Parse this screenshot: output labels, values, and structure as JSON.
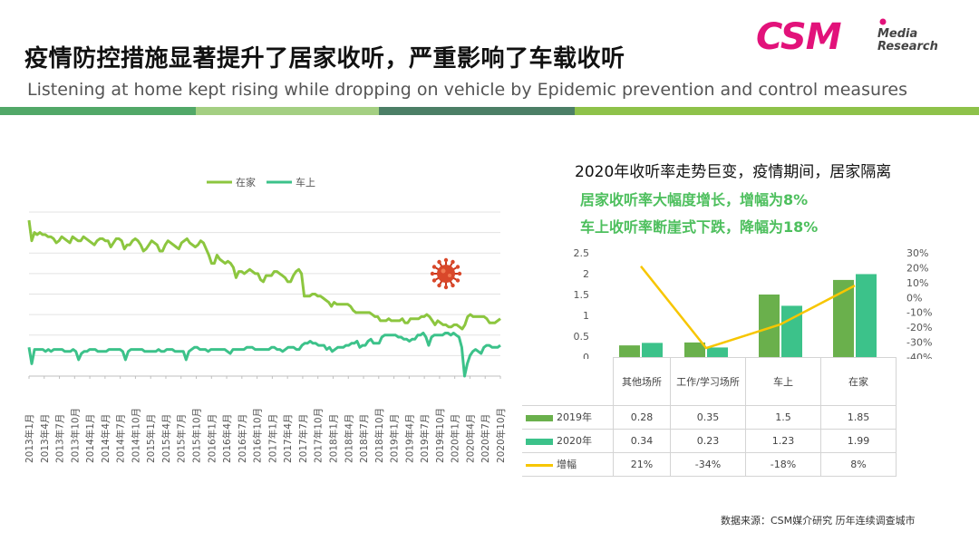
{
  "title": "疫情防控措施显著提升了居家收听，严重影响了车载收听",
  "subtitle": "Listening at home kept rising while dropping on vehicle by Epidemic prevention and control measures",
  "logo": {
    "main": "CSM",
    "line1": "Media",
    "line2": "Research"
  },
  "colors": {
    "home": "#8cc63f",
    "car": "#3cc28a",
    "bar2019": "#6ab04c",
    "bar2020": "#3cc28a",
    "change": "#f7c600",
    "accent": "#e2127a"
  },
  "headline": "2020年收听率走势巨变，疫情期间，居家隔离",
  "highlight1": "居家收听率大幅度增长，增幅为8%",
  "highlight2": "车上收听率断崖式下跌，降幅为18%",
  "source": "数据来源：CSM媒介研究   历年连续调查城市",
  "chart_data": [
    {
      "type": "line",
      "legend": [
        "在家",
        "车上"
      ],
      "legend_position": "top",
      "grid": true,
      "icon": "virus-icon",
      "x_ticks": [
        "2013年1月",
        "2013年4月",
        "2013年7月",
        "2013年10月",
        "2014年1月",
        "2014年4月",
        "2014年7月",
        "2014年10月",
        "2015年1月",
        "2015年4月",
        "2015年7月",
        "2015年10月",
        "2016年1月",
        "2016年4月",
        "2016年7月",
        "2016年10月",
        "2017年1月",
        "2017年4月",
        "2017年7月",
        "2017年10月",
        "2018年1月",
        "2018年4月",
        "2018年7月",
        "2018年10月",
        "2019年1月",
        "2019年4月",
        "2019年7月",
        "2019年10月",
        "2020年1月",
        "2020年4月",
        "2020年7月",
        "2020年10月"
      ],
      "ylim": [
        0,
        8
      ],
      "series": [
        {
          "name": "在家",
          "values": [
            7.6,
            6.6,
            7.0,
            6.9,
            7.0,
            6.9,
            6.9,
            6.8,
            6.8,
            6.7,
            6.5,
            6.6,
            6.8,
            6.7,
            6.6,
            6.5,
            6.8,
            6.7,
            6.6,
            6.6,
            6.8,
            6.7,
            6.6,
            6.5,
            6.4,
            6.6,
            6.7,
            6.7,
            6.6,
            6.6,
            6.3,
            6.5,
            6.7,
            6.7,
            6.6,
            6.2,
            6.4,
            6.4,
            6.6,
            6.7,
            6.6,
            6.4,
            6.1,
            6.2,
            6.4,
            6.6,
            6.5,
            6.4,
            6.1,
            6.1,
            6.4,
            6.6,
            6.5,
            6.4,
            6.3,
            6.2,
            6.5,
            6.6,
            6.7,
            6.5,
            6.4,
            6.3,
            6.4,
            6.6,
            6.5,
            6.2,
            5.9,
            5.5,
            5.5,
            5.9,
            5.7,
            5.6,
            5.5,
            5.6,
            5.5,
            5.3,
            4.8,
            5.1,
            5.1,
            5.0,
            5.1,
            5.2,
            5.1,
            5.0,
            5.0,
            4.7,
            4.6,
            4.9,
            4.9,
            4.9,
            5.1,
            5.1,
            5.0,
            4.9,
            4.8,
            4.6,
            4.6,
            4.9,
            5.1,
            5.2,
            5.0,
            3.9,
            3.9,
            3.9,
            4.0,
            4.0,
            3.9,
            3.9,
            3.8,
            3.7,
            3.6,
            3.4,
            3.6,
            3.5,
            3.5,
            3.5,
            3.5,
            3.5,
            3.4,
            3.2,
            3.1,
            3.1,
            3.1,
            3.1,
            3.1,
            3.1,
            3.0,
            2.9,
            2.9,
            2.7,
            2.7,
            2.7,
            2.8,
            2.7,
            2.7,
            2.7,
            2.7,
            2.8,
            2.6,
            2.6,
            2.8,
            2.8,
            2.8,
            2.8,
            2.9,
            2.9,
            3.0,
            2.9,
            2.7,
            2.5,
            2.7,
            2.6,
            2.5,
            2.5,
            2.4,
            2.4,
            2.5,
            2.5,
            2.4,
            2.3,
            2.5,
            2.9,
            3.0,
            2.9,
            2.9,
            2.9,
            2.9,
            2.9,
            2.8,
            2.6,
            2.6,
            2.6,
            2.7,
            2.8
          ]
        },
        {
          "name": "车上",
          "values": [
            1.4,
            0.6,
            1.3,
            1.3,
            1.3,
            1.3,
            1.2,
            1.3,
            1.2,
            1.3,
            1.3,
            1.3,
            1.3,
            1.2,
            1.2,
            1.2,
            1.3,
            1.2,
            0.8,
            1.1,
            1.2,
            1.2,
            1.3,
            1.3,
            1.3,
            1.2,
            1.2,
            1.2,
            1.2,
            1.3,
            1.3,
            1.3,
            1.3,
            1.3,
            1.2,
            0.8,
            1.2,
            1.3,
            1.3,
            1.3,
            1.3,
            1.3,
            1.2,
            1.2,
            1.2,
            1.2,
            1.2,
            1.3,
            1.2,
            1.2,
            1.3,
            1.3,
            1.3,
            1.2,
            1.2,
            1.2,
            1.2,
            0.8,
            1.2,
            1.3,
            1.4,
            1.4,
            1.3,
            1.3,
            1.3,
            1.2,
            1.3,
            1.3,
            1.3,
            1.3,
            1.3,
            1.3,
            1.2,
            1.1,
            1.3,
            1.3,
            1.3,
            1.3,
            1.3,
            1.4,
            1.4,
            1.4,
            1.3,
            1.3,
            1.3,
            1.3,
            1.3,
            1.3,
            1.4,
            1.4,
            1.3,
            1.3,
            1.2,
            1.3,
            1.4,
            1.4,
            1.4,
            1.3,
            1.3,
            1.5,
            1.6,
            1.6,
            1.7,
            1.6,
            1.6,
            1.5,
            1.5,
            1.5,
            1.3,
            1.4,
            1.2,
            1.3,
            1.4,
            1.4,
            1.4,
            1.5,
            1.5,
            1.6,
            1.6,
            1.7,
            1.4,
            1.5,
            1.5,
            1.7,
            1.8,
            1.6,
            1.6,
            1.6,
            1.9,
            2.0,
            2.0,
            2.0,
            2.0,
            2.0,
            1.9,
            1.9,
            1.8,
            1.8,
            1.7,
            1.8,
            1.8,
            2.0,
            2.0,
            2.1,
            1.9,
            1.5,
            1.9,
            2.0,
            2.0,
            2.0,
            2.0,
            2.1,
            2.1,
            2.0,
            2.1,
            2.0,
            1.9,
            1.4,
            0.0,
            0.6,
            1.0,
            1.2,
            1.3,
            1.2,
            1.1,
            1.4,
            1.5,
            1.5,
            1.4,
            1.4,
            1.4,
            1.5
          ]
        }
      ]
    },
    {
      "type": "bar",
      "categories": [
        "其他场所",
        "工作/学习场所",
        "车上",
        "在家"
      ],
      "ylim": [
        0,
        2.5
      ],
      "y_ticks": [
        "2.5",
        "2",
        "1.5",
        "1",
        "0.5",
        "0"
      ],
      "y2lim": [
        -40,
        30
      ],
      "y2_ticks": [
        "30%",
        "20%",
        "10%",
        "0%",
        "-10%",
        "-20%",
        "-30%",
        "-40%"
      ],
      "series": [
        {
          "name": "2019年",
          "kind": "bar",
          "values": [
            0.28,
            0.35,
            1.5,
            1.85
          ],
          "labels": [
            "0.28",
            "0.35",
            "1.5",
            "1.85"
          ]
        },
        {
          "name": "2020年",
          "kind": "bar",
          "values": [
            0.34,
            0.23,
            1.23,
            1.99
          ],
          "labels": [
            "0.34",
            "0.23",
            "1.23",
            "1.99"
          ]
        },
        {
          "name": "增幅",
          "kind": "line",
          "axis": "secondary",
          "values": [
            21,
            -34,
            -18,
            8
          ],
          "labels": [
            "21%",
            "-34%",
            "-18%",
            "8%"
          ]
        }
      ]
    }
  ]
}
